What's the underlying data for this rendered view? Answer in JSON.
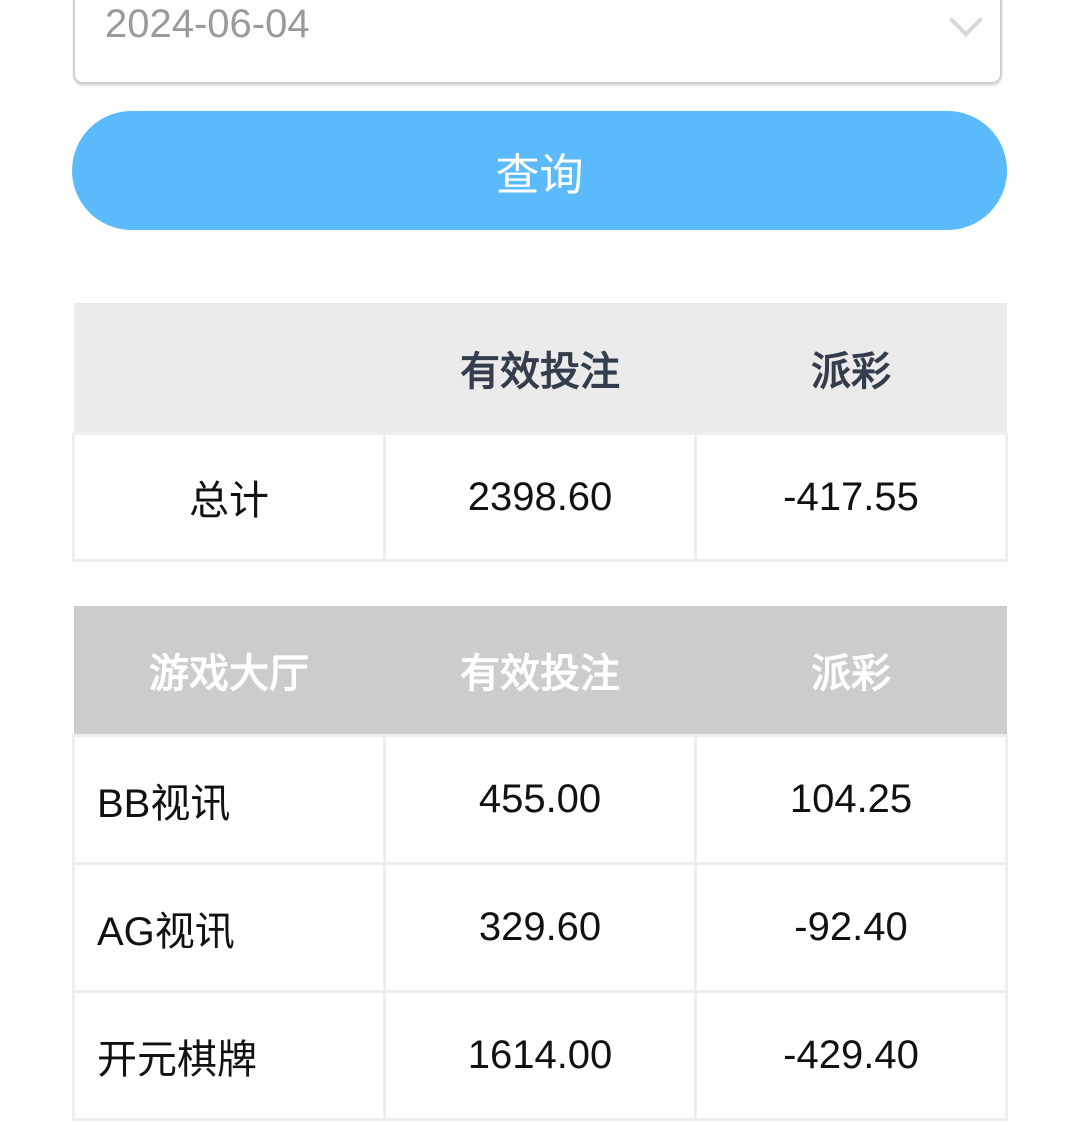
{
  "date_select": {
    "value": "2024-06-04",
    "icon": "chevron-down-icon"
  },
  "query_button": {
    "label": "查询",
    "color": "#5bbafb"
  },
  "summary": {
    "headers": [
      "",
      "有效投注",
      "派彩"
    ],
    "row": {
      "label": "总计",
      "bet": "2398.60",
      "payout": "-417.55"
    }
  },
  "details": {
    "headers": [
      "游戏大厅",
      "有效投注",
      "派彩"
    ],
    "rows": [
      {
        "hall": "BB视讯",
        "bet": "455.00",
        "payout": "104.25"
      },
      {
        "hall": "AG视讯",
        "bet": "329.60",
        "payout": "-92.40"
      },
      {
        "hall": "开元棋牌",
        "bet": "1614.00",
        "payout": "-429.40"
      }
    ]
  }
}
